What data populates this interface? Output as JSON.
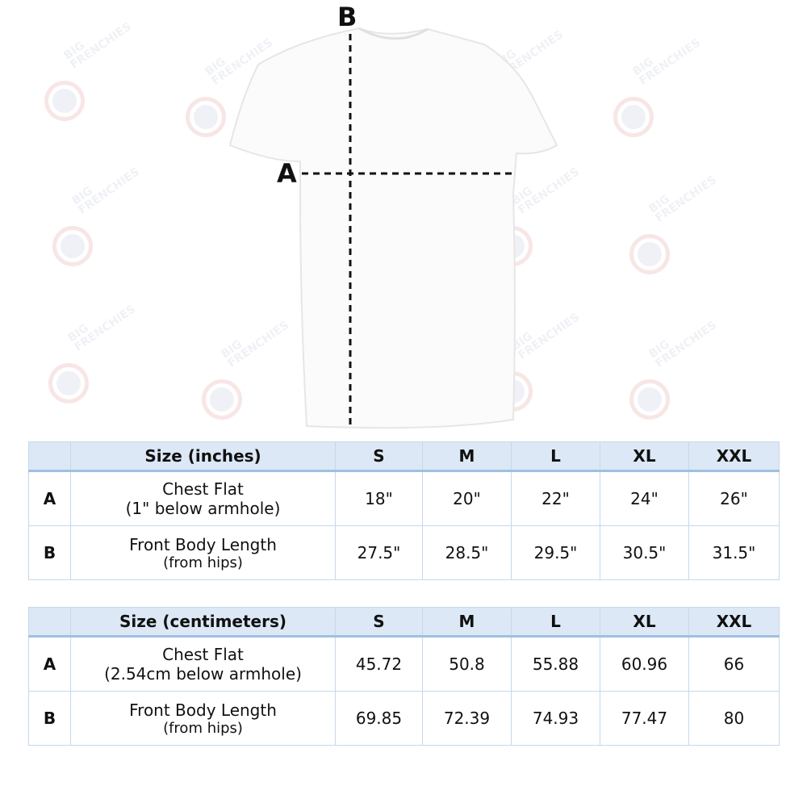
{
  "watermark": {
    "logo_text": "BIG FRENCHIES",
    "colors": {
      "ring": "#f3d2d2",
      "dot": "#e3e6ef"
    }
  },
  "diagram": {
    "label_a": "A",
    "label_b": "B"
  },
  "tables": [
    {
      "header": "Size (inches)",
      "sizes": [
        "S",
        "M",
        "L",
        "XL",
        "XXL"
      ],
      "rows": [
        {
          "key": "A",
          "title": "Chest Flat",
          "subtitle": "(1\" below armhole)",
          "values": [
            "18\"",
            "20\"",
            "22\"",
            "24\"",
            "26\""
          ]
        },
        {
          "key": "B",
          "title": "Front Body Length",
          "subtitle": "(from hips)",
          "values": [
            "27.5\"",
            "28.5\"",
            "29.5\"",
            "30.5\"",
            "31.5\""
          ]
        }
      ]
    },
    {
      "header": "Size (centimeters)",
      "sizes": [
        "S",
        "M",
        "L",
        "XL",
        "XXL"
      ],
      "rows": [
        {
          "key": "A",
          "title": "Chest Flat",
          "subtitle": "(2.54cm below armhole)",
          "values": [
            "45.72",
            "50.8",
            "55.88",
            "60.96",
            "66"
          ]
        },
        {
          "key": "B",
          "title": "Front Body Length",
          "subtitle": "(from hips)",
          "values": [
            "69.85",
            "72.39",
            "74.93",
            "77.47",
            "80"
          ]
        }
      ]
    }
  ]
}
